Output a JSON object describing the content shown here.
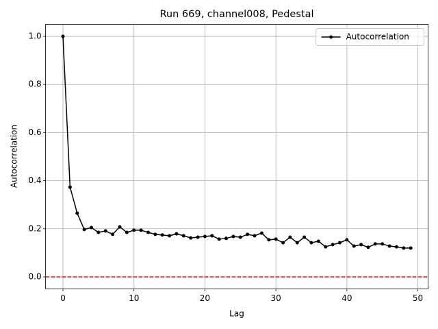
{
  "chart_data": {
    "type": "line",
    "title": "Run 669, channel008, Pedestal",
    "x_label": "Lag",
    "y_label": "Autocorrelation",
    "x": [
      0,
      1,
      2,
      3,
      4,
      5,
      6,
      7,
      8,
      9,
      10,
      11,
      12,
      13,
      14,
      15,
      16,
      17,
      18,
      19,
      20,
      21,
      22,
      23,
      24,
      25,
      26,
      27,
      28,
      29,
      30,
      31,
      32,
      33,
      34,
      35,
      36,
      37,
      38,
      39,
      40,
      41,
      42,
      43,
      44,
      45,
      46,
      47,
      48,
      49
    ],
    "series": [
      {
        "name": "Autocorrelation",
        "color": "#000000",
        "values": [
          1.0,
          0.373,
          0.265,
          0.197,
          0.205,
          0.185,
          0.191,
          0.177,
          0.208,
          0.185,
          0.194,
          0.194,
          0.185,
          0.177,
          0.174,
          0.171,
          0.179,
          0.171,
          0.162,
          0.165,
          0.168,
          0.171,
          0.157,
          0.16,
          0.168,
          0.165,
          0.177,
          0.171,
          0.182,
          0.154,
          0.157,
          0.142,
          0.165,
          0.142,
          0.165,
          0.142,
          0.148,
          0.125,
          0.134,
          0.142,
          0.154,
          0.128,
          0.134,
          0.123,
          0.137,
          0.137,
          0.128,
          0.125,
          0.12,
          0.12
        ]
      }
    ],
    "reference_line": {
      "value": 0,
      "color": "#e41a1c"
    },
    "xlim": [
      -2.45,
      51.45
    ],
    "ylim": [
      -0.05,
      1.05
    ],
    "xticks": [
      0,
      10,
      20,
      30,
      40,
      50
    ],
    "yticks": [
      {
        "value": 0,
        "label": "0.0"
      },
      {
        "value": 0.2,
        "label": "0.2"
      },
      {
        "value": 0.4,
        "label": "0.4"
      },
      {
        "value": 0.6,
        "label": "0.6"
      },
      {
        "value": 0.8,
        "label": "0.8"
      },
      {
        "value": 1,
        "label": "1.0"
      }
    ],
    "grid": true,
    "legend": "upper-right"
  }
}
